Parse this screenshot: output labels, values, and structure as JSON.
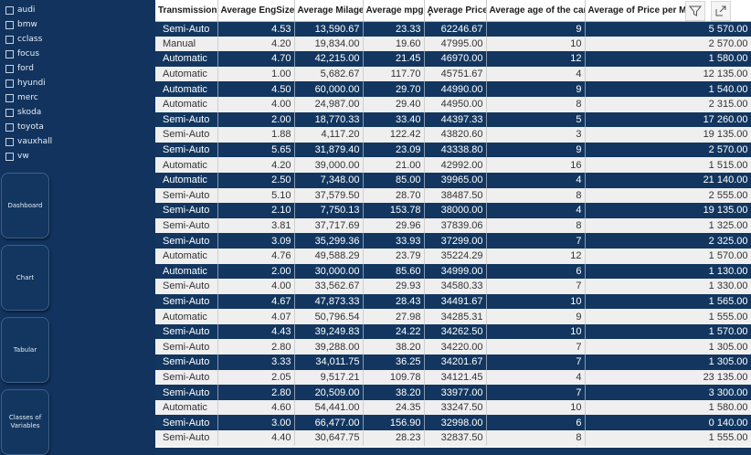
{
  "filters": {
    "brands": [
      "audi",
      "bmw",
      "cclass",
      "focus",
      "ford",
      "hyundi",
      "merc",
      "skoda",
      "toyota",
      "vauxhall",
      "vw"
    ]
  },
  "nav": {
    "dashboard": "Dashboard",
    "chart": "Chart",
    "tabular": "Tabular",
    "classes_line1": "Classes of",
    "classes_line2": "Variables"
  },
  "table": {
    "columns": [
      "Transmission",
      "Average EngSize",
      "Average Milage",
      "Average mpg",
      "Average Price",
      "Average age of the car",
      "Average of Price per Mil"
    ],
    "rows": [
      [
        "Semi-Auto",
        "4.53",
        "13,590.67",
        "23.33",
        "62246.67",
        "9",
        "5 570.00"
      ],
      [
        "Manual",
        "4.20",
        "19,834.00",
        "19.60",
        "47995.00",
        "10",
        "2 570.00"
      ],
      [
        "Automatic",
        "4.70",
        "42,215.00",
        "21.45",
        "46970.00",
        "12",
        "1 580.00"
      ],
      [
        "Automatic",
        "1.00",
        "5,682.67",
        "117.70",
        "45751.67",
        "4",
        "12 135.00"
      ],
      [
        "Automatic",
        "4.50",
        "60,000.00",
        "29.70",
        "44990.00",
        "9",
        "1 540.00"
      ],
      [
        "Automatic",
        "4.00",
        "24,987.00",
        "29.40",
        "44950.00",
        "8",
        "2 315.00"
      ],
      [
        "Semi-Auto",
        "2.00",
        "18,770.33",
        "33.40",
        "44397.33",
        "5",
        "17 260.00"
      ],
      [
        "Semi-Auto",
        "1.88",
        "4,117.20",
        "122.42",
        "43820.60",
        "3",
        "19 135.00"
      ],
      [
        "Semi-Auto",
        "5.65",
        "31,879.40",
        "23.09",
        "43338.80",
        "9",
        "2 570.00"
      ],
      [
        "Automatic",
        "4.20",
        "39,000.00",
        "21.00",
        "42992.00",
        "16",
        "1 515.00"
      ],
      [
        "Automatic",
        "2.50",
        "7,348.00",
        "85.00",
        "39965.00",
        "4",
        "21 140.00"
      ],
      [
        "Semi-Auto",
        "5.10",
        "37,579.50",
        "28.70",
        "38487.50",
        "8",
        "2 555.00"
      ],
      [
        "Semi-Auto",
        "2.10",
        "7,750.13",
        "153.78",
        "38000.00",
        "4",
        "19 135.00"
      ],
      [
        "Semi-Auto",
        "3.81",
        "37,717.69",
        "29.96",
        "37839.06",
        "8",
        "1 325.00"
      ],
      [
        "Semi-Auto",
        "3.09",
        "35,299.36",
        "33.93",
        "37299.00",
        "7",
        "2 325.00"
      ],
      [
        "Automatic",
        "4.76",
        "49,588.29",
        "23.79",
        "35224.29",
        "12",
        "1 570.00"
      ],
      [
        "Automatic",
        "2.00",
        "30,000.00",
        "85.60",
        "34999.00",
        "6",
        "1 130.00"
      ],
      [
        "Semi-Auto",
        "4.00",
        "33,562.67",
        "29.93",
        "34580.33",
        "7",
        "1 330.00"
      ],
      [
        "Semi-Auto",
        "4.67",
        "47,873.33",
        "28.43",
        "34491.67",
        "10",
        "1 565.00"
      ],
      [
        "Automatic",
        "4.07",
        "50,796.54",
        "27.98",
        "34285.31",
        "9",
        "1 555.00"
      ],
      [
        "Semi-Auto",
        "4.43",
        "39,249.83",
        "24.22",
        "34262.50",
        "10",
        "1 570.00"
      ],
      [
        "Semi-Auto",
        "2.80",
        "39,288.00",
        "38.20",
        "34220.00",
        "7",
        "1 305.00"
      ],
      [
        "Semi-Auto",
        "3.33",
        "34,011.75",
        "36.25",
        "34201.67",
        "7",
        "1 305.00"
      ],
      [
        "Semi-Auto",
        "2.05",
        "9,517.21",
        "109.78",
        "34121.45",
        "4",
        "23 135.00"
      ],
      [
        "Semi-Auto",
        "2.80",
        "20,509.00",
        "38.20",
        "33977.00",
        "7",
        "3 300.00"
      ],
      [
        "Automatic",
        "4.60",
        "54,441.00",
        "24.35",
        "33247.50",
        "10",
        "1 580.00"
      ],
      [
        "Semi-Auto",
        "3.00",
        "66,477.00",
        "156.90",
        "32998.00",
        "6",
        "0 140.00"
      ],
      [
        "Semi-Auto",
        "4.40",
        "30,647.75",
        "28.23",
        "32837.50",
        "8",
        "1 555.00"
      ]
    ]
  },
  "icons": {
    "filter": "filter-icon",
    "focus": "focus-mode-icon",
    "sort": "sort-descending-icon"
  }
}
